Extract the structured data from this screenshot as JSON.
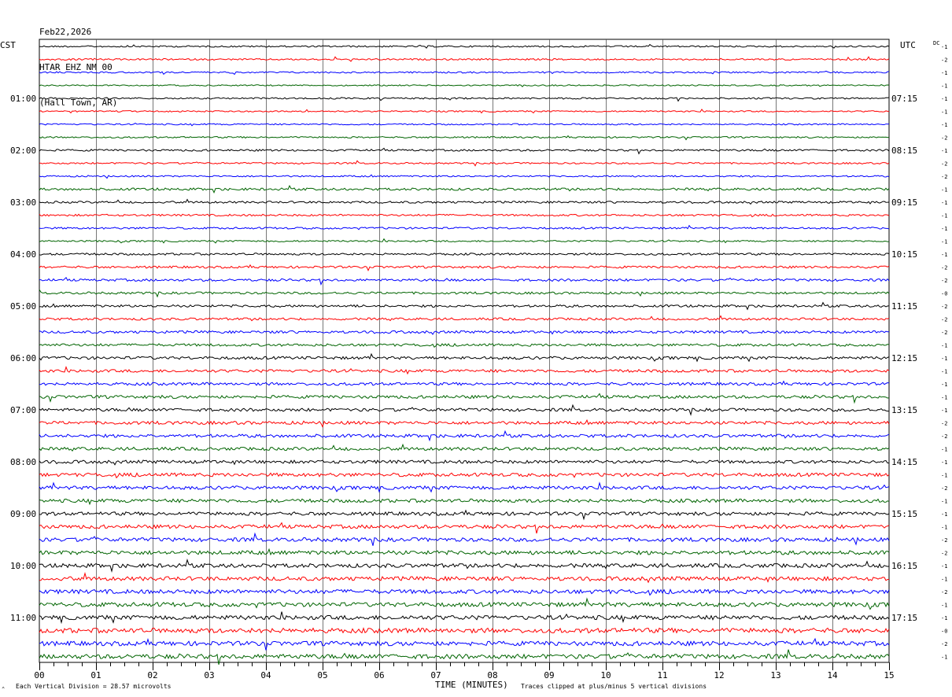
{
  "header": {
    "date": "Feb22,2026",
    "station": "HTAR EHZ NM 00",
    "location": "(Hall Town, AR)"
  },
  "left_tz": "CST",
  "right_tz": "UTC",
  "dc_label": "DC",
  "footer": {
    "scale_note": "Each Vertical Division =   28.57 microvolts",
    "xlabel": "TIME (MINUTES)",
    "clip_note": "Traces clipped at plus/minus 5 vertical divisions"
  },
  "colors": {
    "cycle": [
      "#000000",
      "#ff0000",
      "#0000ff",
      "#006400"
    ],
    "grid": "#000000"
  },
  "chart_data": {
    "type": "line",
    "title": "",
    "xlabel": "TIME (MINUTES)",
    "ylabel": "",
    "xlim": [
      0,
      15
    ],
    "x_ticks": [
      "00",
      "01",
      "02",
      "03",
      "04",
      "05",
      "06",
      "07",
      "08",
      "09",
      "10",
      "11",
      "12",
      "13",
      "14",
      "15"
    ],
    "traces_per_hour": 4,
    "left_time_labels": [
      "01:00",
      "02:00",
      "03:00",
      "04:00",
      "05:00",
      "06:00",
      "07:00",
      "08:00",
      "09:00",
      "10:00",
      "11:00"
    ],
    "right_time_labels": [
      "07:15",
      "08:15",
      "09:15",
      "10:15",
      "11:15",
      "12:15",
      "13:15",
      "14:15",
      "15:15",
      "16:15",
      "17:15"
    ],
    "dc_offsets": [
      "-1",
      "-2",
      "-1",
      "-1",
      "-1",
      "-1",
      "-1",
      "-2",
      "-1",
      "-2",
      "-2",
      "-1",
      "-1",
      "-1",
      "-1",
      "-1",
      "-1",
      "-2",
      "-2",
      "-0",
      "-2",
      "-2",
      "-2",
      "-1",
      "-1",
      "-1",
      "-1",
      "-1",
      "-1",
      "-2",
      "-2",
      "-1",
      "-1",
      "-1",
      "-2",
      "-1",
      "-1",
      "-1",
      "-2",
      "-2",
      "-1",
      "-1",
      "-2",
      "-1",
      "-1",
      "-0",
      "-2",
      "-1"
    ],
    "amplitude": [
      1.0,
      1.0,
      1.0,
      0.8,
      1.0,
      0.9,
      0.9,
      1.0,
      1.2,
      1.0,
      1.0,
      1.5,
      1.3,
      1.2,
      1.2,
      1.0,
      1.3,
      1.4,
      1.5,
      1.4,
      1.5,
      1.5,
      1.6,
      1.6,
      1.8,
      1.8,
      1.8,
      1.9,
      1.9,
      2.0,
      2.0,
      2.0,
      2.0,
      2.2,
      2.2,
      2.2,
      2.2,
      2.3,
      2.4,
      2.5,
      2.5,
      2.5,
      2.6,
      2.7,
      2.7,
      3.0,
      2.8,
      2.8
    ]
  }
}
